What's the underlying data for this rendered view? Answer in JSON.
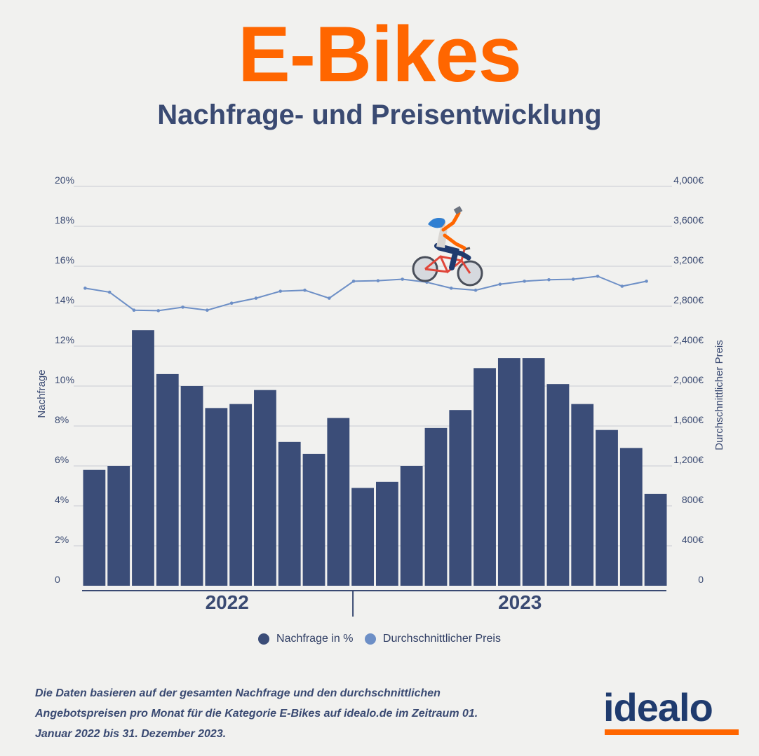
{
  "header": {
    "title": "E-Bikes",
    "subtitle": "Nachfrage- und Preisentwicklung"
  },
  "legend": {
    "demand_label": "Nachfrage in %",
    "price_label": "Durchschnittlicher Preis"
  },
  "footnote": "Die Daten basieren auf der gesamten Nachfrage und den durchschnittlichen Angebotspreisen pro Monat für die Kategorie E-Bikes auf idealo.de im Zeitraum 01. Januar 2022 bis 31. Dezember 2023.",
  "logo": {
    "text": "idealo"
  },
  "colors": {
    "title": "#ff6600",
    "subtitle": "#3a4a72",
    "bar": "#3b4d78",
    "line": "#6d8fc6",
    "grid": "#c9ccd3",
    "logo": "#1f3b6e",
    "accent": "#ff6600"
  },
  "icons": {
    "illustration": "cyclist-on-bike-icon"
  },
  "chart_data": {
    "type": "bar",
    "title": "",
    "ylabel": "Nachfrage",
    "y2label": "Durchschnittlicher Preis",
    "ylim": [
      0,
      20
    ],
    "y2lim": [
      0,
      4000
    ],
    "y_ticks": [
      "0",
      "2%",
      "4%",
      "6%",
      "8%",
      "10%",
      "12%",
      "14%",
      "16%",
      "18%",
      "20%"
    ],
    "y2_ticks": [
      "0",
      "400€",
      "800€",
      "1,200€",
      "1,600€",
      "2,000€",
      "2,400€",
      "2,800€",
      "3,200€",
      "3,600€",
      "4,000€"
    ],
    "year_groups": [
      {
        "label": "2022",
        "count": 12
      },
      {
        "label": "2023",
        "count": 12
      }
    ],
    "grid": true,
    "legend_position": "bottom",
    "series": [
      {
        "name": "Nachfrage in %",
        "type": "bar",
        "axis": "left",
        "values": [
          5.8,
          6.0,
          12.8,
          10.6,
          10.0,
          8.9,
          9.1,
          9.8,
          7.2,
          6.6,
          8.4,
          4.9,
          5.2,
          6.0,
          7.9,
          8.8,
          10.9,
          11.4,
          11.4,
          10.1,
          9.1,
          7.8,
          6.9,
          4.6
        ]
      },
      {
        "name": "Durchschnittlicher Preis",
        "type": "line",
        "axis": "right",
        "values": [
          2980,
          2940,
          2760,
          2755,
          2790,
          2760,
          2830,
          2880,
          2950,
          2960,
          2880,
          3050,
          3055,
          3070,
          3040,
          2980,
          2960,
          3020,
          3050,
          3065,
          3070,
          3100,
          3000,
          3050
        ]
      }
    ]
  }
}
